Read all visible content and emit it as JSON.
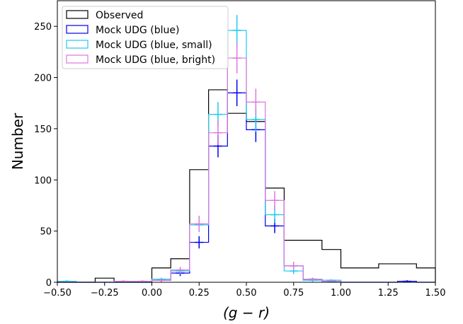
{
  "chart_data": {
    "type": "histogram",
    "title": "",
    "xlabel": "(g − r)",
    "ylabel": "Number",
    "xlim": [
      -0.5,
      1.5
    ],
    "ylim": [
      0,
      275
    ],
    "xticks": [
      -0.5,
      -0.25,
      0.0,
      0.25,
      0.5,
      0.75,
      1.0,
      1.25,
      1.5
    ],
    "xtick_labels": [
      "−0.50",
      "−0.25",
      "0.00",
      "0.25",
      "0.50",
      "0.75",
      "1.00",
      "1.25",
      "1.50"
    ],
    "yticks": [
      0,
      50,
      100,
      150,
      200,
      250
    ],
    "ytick_labels": [
      "0",
      "50",
      "100",
      "150",
      "200",
      "250"
    ],
    "legend_position": "top-left",
    "bin_edges": [
      -0.5,
      -0.4,
      -0.3,
      -0.2,
      -0.1,
      0.0,
      0.1,
      0.2,
      0.3,
      0.4,
      0.5,
      0.6,
      0.7,
      0.8,
      0.9,
      1.0,
      1.1,
      1.2,
      1.3,
      1.4,
      1.5
    ],
    "series": [
      {
        "name": "Observed",
        "color": "#000000",
        "values": [
          0,
          0,
          4,
          0,
          0,
          14,
          23,
          110,
          188,
          165,
          157,
          92,
          41,
          41,
          32,
          14,
          14,
          18,
          18,
          14
        ]
      },
      {
        "name": "Mock UDG (blue)",
        "color": "#0000ee",
        "values": [
          0,
          0,
          0,
          0,
          0,
          2,
          9,
          39,
          133,
          185,
          149,
          55,
          16,
          3,
          1,
          0,
          0,
          0,
          1,
          0
        ],
        "errors": [
          0,
          0,
          0,
          0,
          0,
          1.5,
          3,
          6,
          11,
          13,
          12,
          7,
          4,
          1.5,
          1,
          0,
          0,
          0,
          1,
          0
        ]
      },
      {
        "name": "Mock UDG (blue, small)",
        "color": "#22c8ee",
        "values": [
          1,
          0,
          0,
          0,
          0,
          3,
          11,
          56,
          164,
          246,
          159,
          66,
          11,
          2,
          2,
          0,
          0,
          0,
          0,
          0
        ],
        "errors": [
          1,
          0,
          0,
          0,
          0,
          1.5,
          3,
          7,
          12,
          15,
          12,
          8,
          3,
          1.5,
          1,
          0,
          0,
          0,
          0,
          0
        ]
      },
      {
        "name": "Mock UDG (blue, bright)",
        "color": "#dd77dd",
        "values": [
          0,
          0,
          0,
          1,
          1,
          2,
          12,
          57,
          146,
          219,
          176,
          80,
          16,
          3,
          1,
          0,
          0,
          0,
          0,
          0
        ],
        "errors": [
          0,
          0,
          0,
          1,
          1,
          1.5,
          3,
          8,
          12,
          15,
          13,
          9,
          4,
          1.5,
          1,
          0,
          0,
          0,
          0,
          0
        ]
      }
    ]
  }
}
